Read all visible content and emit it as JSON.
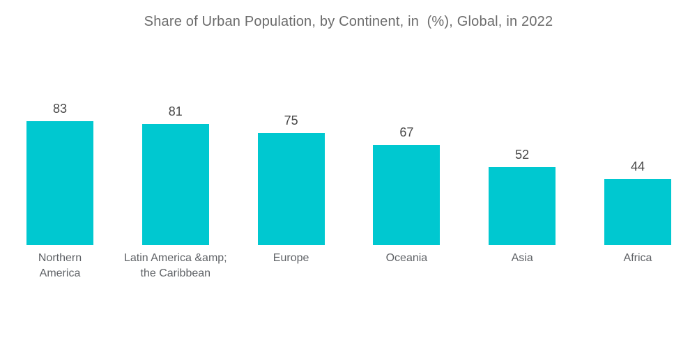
{
  "chart_data": {
    "type": "bar",
    "title": "Share of Urban Population, by Continent, in  (%), Global, in 2022",
    "categories": [
      "Northern\nAmerica",
      "Latin America &amp;\nthe Caribbean",
      "Europe",
      "Oceania",
      "Asia",
      "Africa"
    ],
    "values": [
      83,
      81,
      75,
      67,
      52,
      44
    ],
    "value_labels": [
      "83",
      "81",
      "75",
      "67",
      "52",
      "44"
    ],
    "xlabel": "",
    "ylabel": "",
    "ylim": [
      0,
      100
    ],
    "grid": false,
    "legend": false,
    "bar_color": "#00c8d0",
    "title_color": "#6b6b6b",
    "value_label_color": "#474747",
    "category_label_color": "#5e6165",
    "background_color": "#ffffff"
  }
}
